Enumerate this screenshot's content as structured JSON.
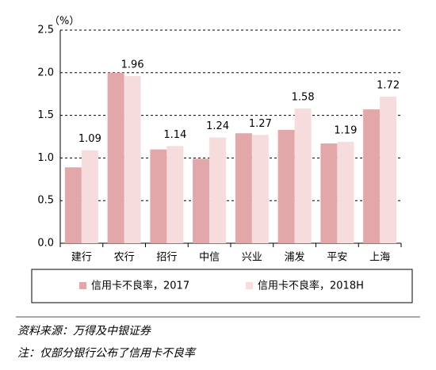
{
  "chart_data": {
    "type": "bar",
    "y_label": "（%）",
    "categories": [
      "建行",
      "农行",
      "招行",
      "中信",
      "兴业",
      "浦发",
      "平安",
      "上海"
    ],
    "series": [
      {
        "name": "信用卡不良率，2017",
        "color": "#e2a7a9",
        "values": [
          0.89,
          2.0,
          1.1,
          0.99,
          1.29,
          1.33,
          1.17,
          1.57
        ]
      },
      {
        "name": "信用卡不良率，2018H",
        "color": "#f6dcdd",
        "values": [
          1.09,
          1.96,
          1.14,
          1.24,
          1.27,
          1.58,
          1.19,
          1.72
        ]
      }
    ],
    "ylim": [
      0,
      2.5
    ],
    "yticks": [
      {
        "value": 0,
        "label": "0.0"
      },
      {
        "value": 0.5,
        "label": "0.5"
      },
      {
        "value": 1,
        "label": "1.0"
      },
      {
        "value": 1.5,
        "label": "1.5"
      },
      {
        "value": 2,
        "label": "2.0"
      },
      {
        "value": 2.5,
        "label": "2.5"
      }
    ],
    "grid": true,
    "labeled_series": 1,
    "source": "资料来源：万得及中银证券",
    "note": "注：仅部分银行公布了信用卡不良率"
  }
}
